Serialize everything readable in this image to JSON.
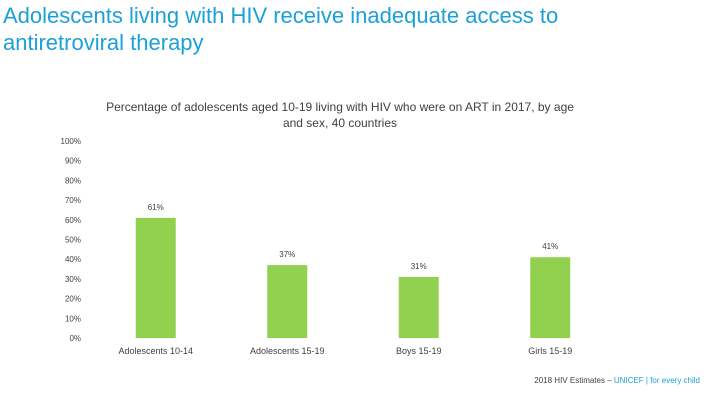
{
  "slide": {
    "title": "Adolescents living with HIV receive inadequate access to antiretroviral therapy"
  },
  "chart_data": {
    "type": "bar",
    "title": "Percentage of adolescents aged 10-19 living with HIV who were on ART in 2017, by age and sex, 40 countries",
    "categories": [
      "Adolescents 10-14",
      "Adolescents 15-19",
      "Boys 15-19",
      "Girls 15-19"
    ],
    "values": [
      61,
      37,
      31,
      41
    ],
    "data_labels": [
      "61%",
      "37%",
      "31%",
      "41%"
    ],
    "y_ticks": [
      0,
      10,
      20,
      30,
      40,
      50,
      60,
      70,
      80,
      90,
      100
    ],
    "y_tick_labels": [
      "0%",
      "10%",
      "20%",
      "30%",
      "40%",
      "50%",
      "60%",
      "70%",
      "80%",
      "90%",
      "100%"
    ],
    "ylim": [
      0,
      100
    ],
    "xlabel": "",
    "ylabel": "",
    "grid": false,
    "bar_color": "#92d050"
  },
  "footer": {
    "source": "2018 HIV Estimates",
    "brand": "UNICEF | for every child",
    "separator": " – "
  }
}
